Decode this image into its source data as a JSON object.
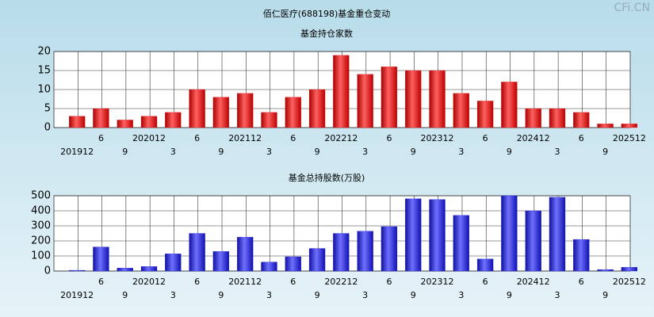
{
  "title": "佰仁医疗(688198)基金重仓变动",
  "watermark": "CFi.CN",
  "chart_data": [
    {
      "type": "bar",
      "title": "基金持仓家数",
      "color": "#e02020",
      "categories": [
        "201912",
        "6",
        "9",
        "202012",
        "3",
        "6",
        "9",
        "202112",
        "3",
        "6",
        "9",
        "202212",
        "3",
        "6",
        "9",
        "202312",
        "3",
        "6",
        "9",
        "202412",
        "3",
        "6",
        "9",
        "202512"
      ],
      "values": [
        3,
        5,
        2,
        3,
        4,
        10,
        8,
        9,
        4,
        8,
        10,
        19,
        14,
        16,
        15,
        15,
        9,
        7,
        12,
        5,
        5,
        4,
        1,
        1
      ],
      "ylim": [
        0,
        20
      ],
      "yticks": [
        0,
        5,
        10,
        15,
        20
      ],
      "grid": true
    },
    {
      "type": "bar",
      "title": "基金总持股数(万股)",
      "color": "#2020e0",
      "categories": [
        "201912",
        "6",
        "9",
        "202012",
        "3",
        "6",
        "9",
        "202112",
        "3",
        "6",
        "9",
        "202212",
        "3",
        "6",
        "9",
        "202312",
        "3",
        "6",
        "9",
        "202412",
        "3",
        "6",
        "9",
        "202512"
      ],
      "values": [
        5,
        160,
        20,
        30,
        115,
        250,
        130,
        225,
        60,
        95,
        150,
        250,
        265,
        295,
        480,
        475,
        370,
        80,
        500,
        400,
        490,
        210,
        10,
        25
      ],
      "ylim": [
        0,
        500
      ],
      "yticks": [
        0,
        100,
        200,
        300,
        400,
        500
      ],
      "grid": true
    }
  ]
}
